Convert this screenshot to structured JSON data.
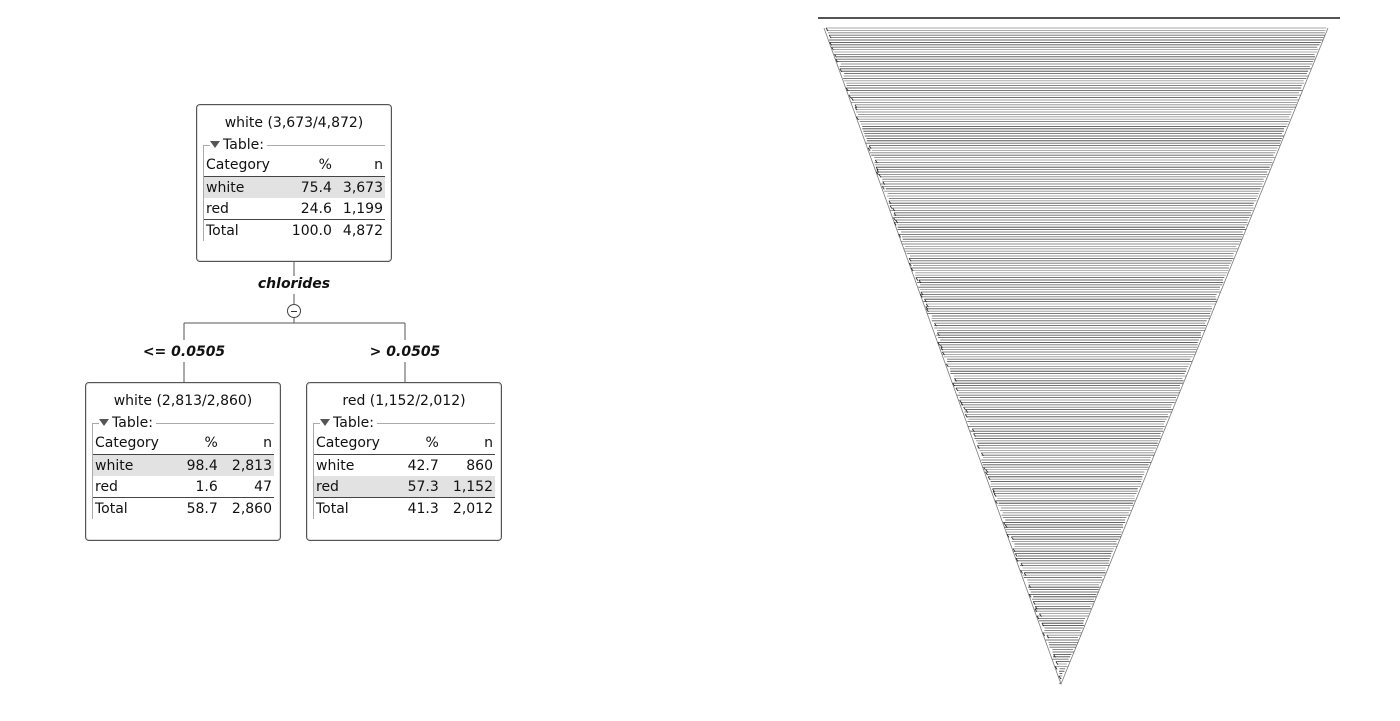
{
  "root": {
    "title": "white (3,673/4,872)",
    "table_label": "Table:",
    "headers": [
      "Category",
      "%",
      "n"
    ],
    "rows": [
      {
        "category": "white",
        "pct": "75.4",
        "n": "3,673",
        "highlight": true
      },
      {
        "category": "red",
        "pct": "24.6",
        "n": "1,199",
        "highlight": false
      }
    ],
    "total": {
      "label": "Total",
      "pct": "100.0",
      "n": "4,872"
    }
  },
  "split": {
    "attribute": "chlorides",
    "left_condition": "<= 0.0505",
    "right_condition": "> 0.0505"
  },
  "left_node": {
    "title": "white (2,813/2,860)",
    "table_label": "Table:",
    "headers": [
      "Category",
      "%",
      "n"
    ],
    "rows": [
      {
        "category": "white",
        "pct": "98.4",
        "n": "2,813",
        "highlight": true
      },
      {
        "category": "red",
        "pct": "1.6",
        "n": "47",
        "highlight": false
      }
    ],
    "total": {
      "label": "Total",
      "pct": "58.7",
      "n": "2,860"
    }
  },
  "right_node": {
    "title": "red (1,152/2,012)",
    "table_label": "Table:",
    "headers": [
      "Category",
      "%",
      "n"
    ],
    "rows": [
      {
        "category": "white",
        "pct": "42.7",
        "n": "860",
        "highlight": false
      },
      {
        "category": "red",
        "pct": "57.3",
        "n": "1,152",
        "highlight": true
      }
    ],
    "total": {
      "label": "Total",
      "pct": "41.3",
      "n": "2,012"
    }
  },
  "icons": {
    "table_toggle": "triangle-down-icon",
    "collapse": "minus-circle-icon"
  }
}
